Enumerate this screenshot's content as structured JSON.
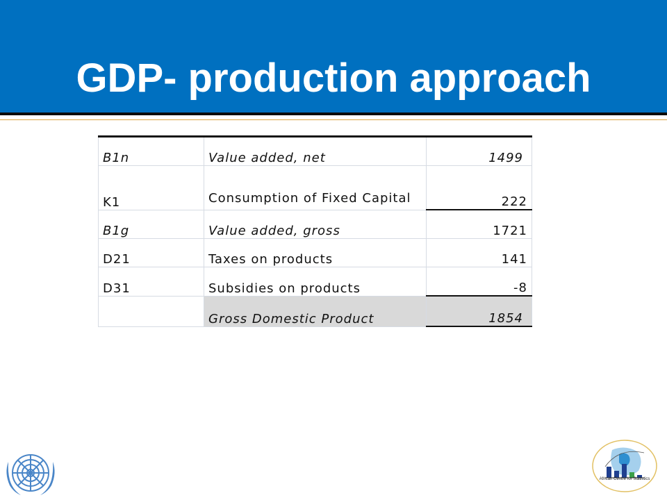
{
  "slide": {
    "title": "GDP- production approach"
  },
  "table": {
    "rows": [
      {
        "code": "B1n",
        "label": "Value added, net",
        "value": "1499",
        "italic": true
      },
      {
        "code": "K1",
        "label": "Consumption of Fixed Capital",
        "value": "222",
        "italic": false
      },
      {
        "code": "B1g",
        "label": "Value added, gross",
        "value": "1721",
        "italic": "code-label"
      },
      {
        "code": "D21",
        "label": "Taxes on products",
        "value": "141",
        "italic": false
      },
      {
        "code": "D31",
        "label": "Subsidies on products",
        "value": "-8",
        "italic": false
      },
      {
        "code": "",
        "label": "Gross Domestic Product",
        "value": "1854",
        "italic": true
      }
    ]
  },
  "logos": {
    "left": "un-emblem-icon",
    "right_text": "African Centre for Statistics"
  },
  "colors": {
    "header": "#0070c0",
    "total_row_shade": "#d9d9d9"
  }
}
